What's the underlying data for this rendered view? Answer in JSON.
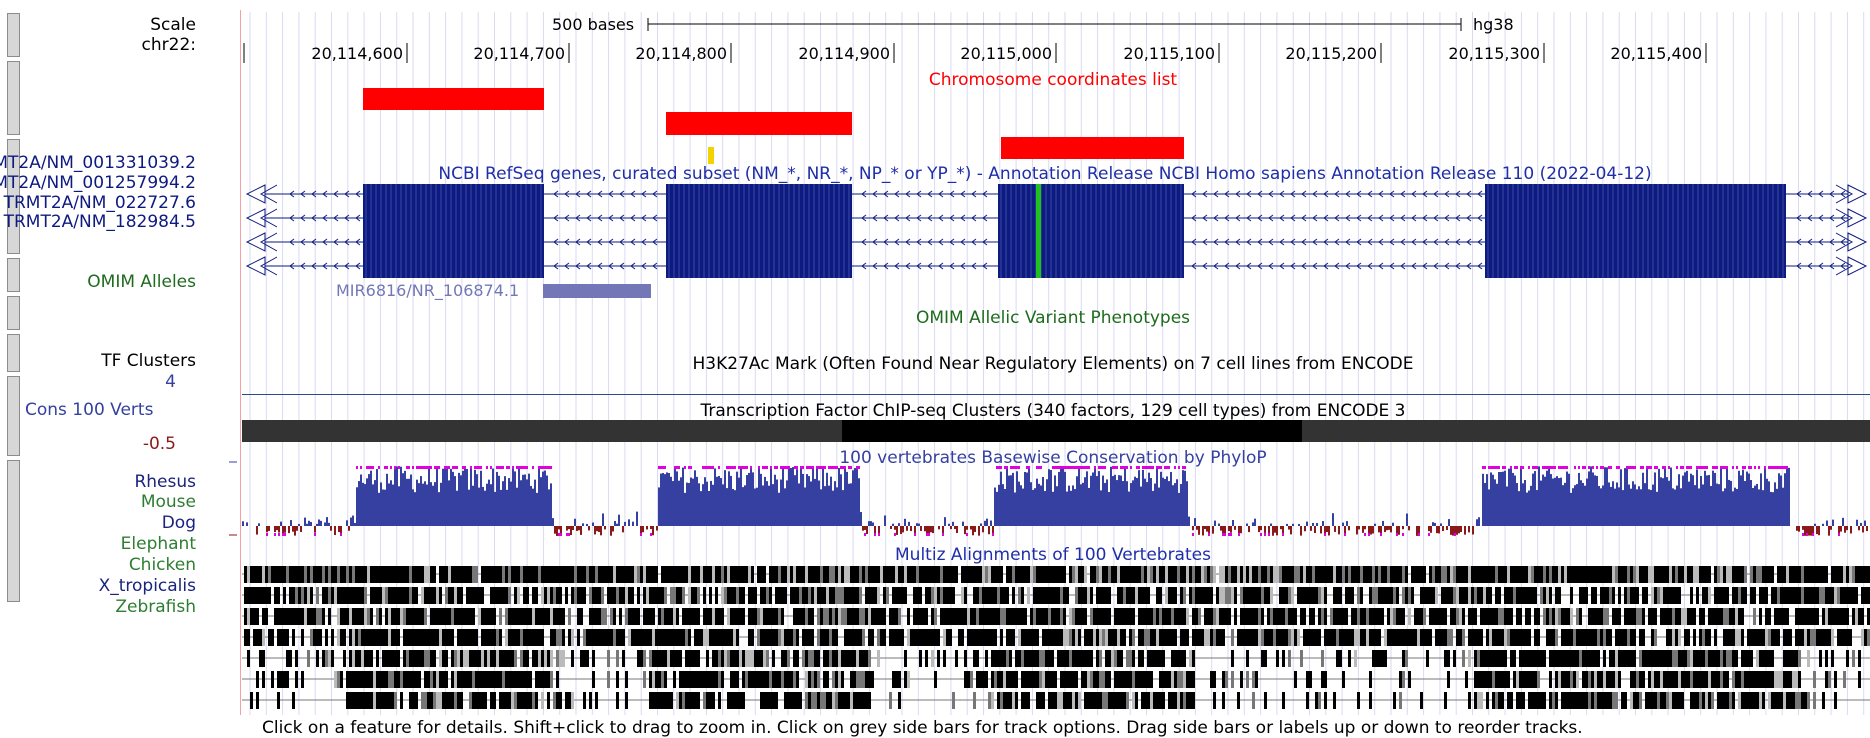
{
  "colors": {
    "refseq_blue": "#0d1a80",
    "track_title_blue": "#1f2ea8",
    "conservation_blue": "#3540a0",
    "conservation_negative": "#8a1a1a",
    "conservation_tick": "#e000e0",
    "omim_green": "#1e6b1e",
    "chrom_list_red": "#ff0000",
    "mir_purple": "#7377b8",
    "highlight_green": "#20c020",
    "yellow_mark": "#f2d200"
  },
  "ruler": {
    "scale_label": "Scale",
    "scale_bar_text": "500 bases",
    "assembly": "hg38",
    "chrom_label": "chr22:",
    "positions": [
      "20,114,600",
      "20,114,700",
      "20,114,800",
      "20,114,900",
      "20,115,000",
      "20,115,100",
      "20,115,200",
      "20,115,300",
      "20,115,400"
    ]
  },
  "tracks": {
    "chrom_coords": {
      "title": "Chromosome coordinates list"
    },
    "refseq": {
      "title": "NCBI RefSeq genes, curated subset (NM_*, NR_*, NP_* or YP_*) - Annotation Release NCBI Homo sapiens Annotation Release 110 (2022-04-12)",
      "transcripts": [
        "MT2A/NM_001331039.2",
        "MT2A/NM_001257994.2",
        "TRMT2A/NM_022727.6",
        "TRMT2A/NM_182984.5"
      ],
      "mirna_label": "MIR6816/NR_106874.1"
    },
    "omim": {
      "left_label": "OMIM Alleles",
      "title": "OMIM Allelic Variant Phenotypes"
    },
    "h3k27ac": {
      "title": "H3K27Ac Mark (Often Found Near Regulatory Elements) on 7 cell lines from ENCODE"
    },
    "tf_clusters": {
      "left_label": "TF Clusters",
      "title": "Transcription Factor ChIP-seq Clusters (340 factors, 129 cell types) from ENCODE 3"
    },
    "conservation": {
      "left_label": "Cons 100 Verts",
      "title": "100 vertebrates Basewise Conservation by PhyloP",
      "y_max": "4",
      "y_min": "-0.5"
    },
    "multiz": {
      "title": "Multiz Alignments of 100 Vertebrates",
      "species": [
        {
          "name": "Rhesus",
          "color": "#1a237e"
        },
        {
          "name": "Mouse",
          "color": "#2e7d32"
        },
        {
          "name": "Dog",
          "color": "#1a237e"
        },
        {
          "name": "Elephant",
          "color": "#2e7d32"
        },
        {
          "name": "Chicken",
          "color": "#2e7d32"
        },
        {
          "name": "X_tropicalis",
          "color": "#1a237e"
        },
        {
          "name": "Zebrafish",
          "color": "#2e7d32"
        }
      ]
    }
  },
  "footer": "Click on a feature for details. Shift+click to drag to zoom in. Click on grey side bars for track options. Drag side bars or labels up or down to reorder tracks."
}
